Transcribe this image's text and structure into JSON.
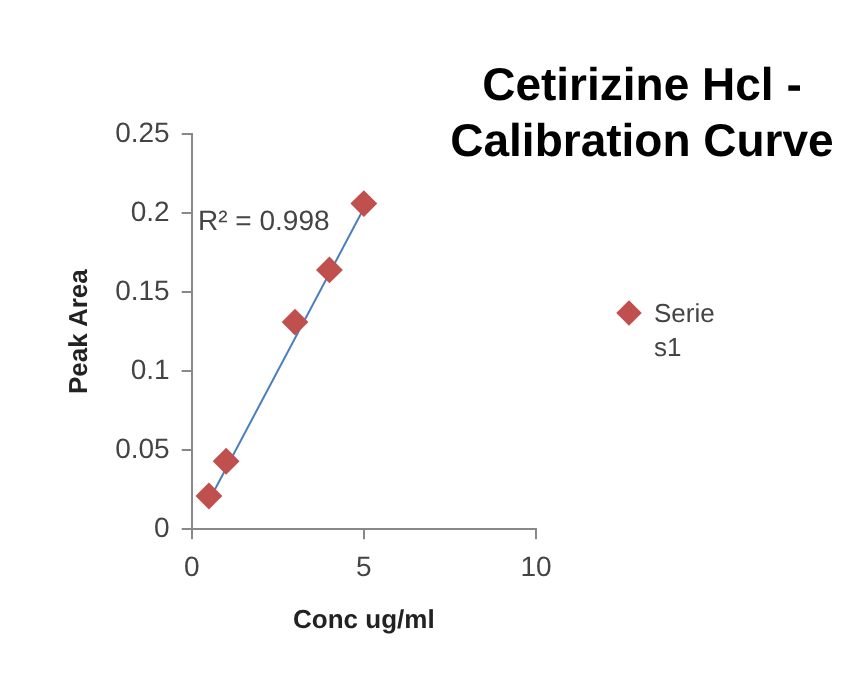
{
  "chart_data": {
    "type": "scatter",
    "title": "Cetirizine Hcl - Calibration Curve",
    "xlabel": "Conc ug/ml",
    "ylabel": "Peak Area",
    "xlim": [
      0,
      10
    ],
    "xticks": [
      0,
      5,
      10
    ],
    "ylim": [
      0,
      0.25
    ],
    "yticks": [
      0,
      0.05,
      0.1,
      0.15,
      0.2,
      0.25
    ],
    "grid": false,
    "legend": "right",
    "marker": "diamond",
    "annotations": [
      "R² = 0.998"
    ],
    "series": [
      {
        "name": "Series1",
        "color": "#c0504d",
        "x": [
          0.5,
          1,
          3,
          4,
          5
        ],
        "values": [
          0.021,
          0.043,
          0.131,
          0.164,
          0.206
        ]
      },
      {
        "type": "line",
        "color": "#4a7ebb",
        "x": [
          0.5,
          5
        ],
        "values": [
          0.018,
          0.203
        ],
        "marker": "none"
      }
    ]
  }
}
